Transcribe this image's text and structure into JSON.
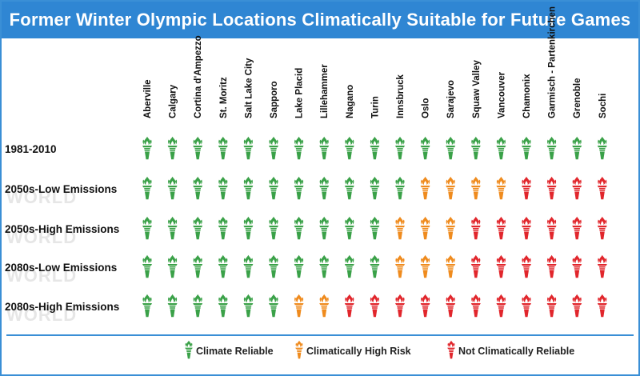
{
  "chart_data": {
    "type": "table",
    "title": "Former Winter Olympic Locations Climatically Suitable for Future Games",
    "columns": [
      "Aberville",
      "Calgary",
      "Cortina d'Ampezzo",
      "St. Moritz",
      "Salt Lake City",
      "Sapporo",
      "Lake Placid",
      "Lillehammer",
      "Nagano",
      "Turin",
      "Innsbruck",
      "Oslo",
      "Sarajevo",
      "Squaw Valley",
      "Vancouver",
      "Chamonix",
      "Garmisch - Partenkirchen",
      "Grenoble",
      "Sochi"
    ],
    "rows": [
      {
        "label": "1981-2010",
        "values": [
          "reliable",
          "reliable",
          "reliable",
          "reliable",
          "reliable",
          "reliable",
          "reliable",
          "reliable",
          "reliable",
          "reliable",
          "reliable",
          "reliable",
          "reliable",
          "reliable",
          "reliable",
          "reliable",
          "reliable",
          "reliable",
          "reliable"
        ]
      },
      {
        "label": "2050s-Low Emissions",
        "values": [
          "reliable",
          "reliable",
          "reliable",
          "reliable",
          "reliable",
          "reliable",
          "reliable",
          "reliable",
          "reliable",
          "reliable",
          "reliable",
          "high_risk",
          "high_risk",
          "high_risk",
          "high_risk",
          "not_reliable",
          "not_reliable",
          "not_reliable",
          "not_reliable"
        ]
      },
      {
        "label": "2050s-High Emissions",
        "values": [
          "reliable",
          "reliable",
          "reliable",
          "reliable",
          "reliable",
          "reliable",
          "reliable",
          "reliable",
          "reliable",
          "reliable",
          "high_risk",
          "high_risk",
          "high_risk",
          "not_reliable",
          "not_reliable",
          "not_reliable",
          "not_reliable",
          "not_reliable",
          "not_reliable"
        ]
      },
      {
        "label": "2080s-Low Emissions",
        "values": [
          "reliable",
          "reliable",
          "reliable",
          "reliable",
          "reliable",
          "reliable",
          "reliable",
          "reliable",
          "reliable",
          "reliable",
          "high_risk",
          "high_risk",
          "high_risk",
          "not_reliable",
          "not_reliable",
          "not_reliable",
          "not_reliable",
          "not_reliable",
          "not_reliable"
        ]
      },
      {
        "label": "2080s-High Emissions",
        "values": [
          "reliable",
          "reliable",
          "reliable",
          "reliable",
          "reliable",
          "reliable",
          "high_risk",
          "high_risk",
          "not_reliable",
          "not_reliable",
          "not_reliable",
          "not_reliable",
          "not_reliable",
          "not_reliable",
          "not_reliable",
          "not_reliable",
          "not_reliable",
          "not_reliable",
          "not_reliable"
        ]
      }
    ],
    "legend": [
      {
        "key": "reliable",
        "label": "Climate Reliable",
        "color": "#3aa148"
      },
      {
        "key": "high_risk",
        "label": "Climatically High Risk",
        "color": "#ef8b1e"
      },
      {
        "key": "not_reliable",
        "label": "Not Climatically Reliable",
        "color": "#e1262c"
      }
    ],
    "legend_placement": "bottom"
  },
  "watermark": "WORLD",
  "colors": {
    "header_bg": "#2f86d3",
    "border": "#3a8fd6"
  },
  "icon": "olympic-torch-icon"
}
